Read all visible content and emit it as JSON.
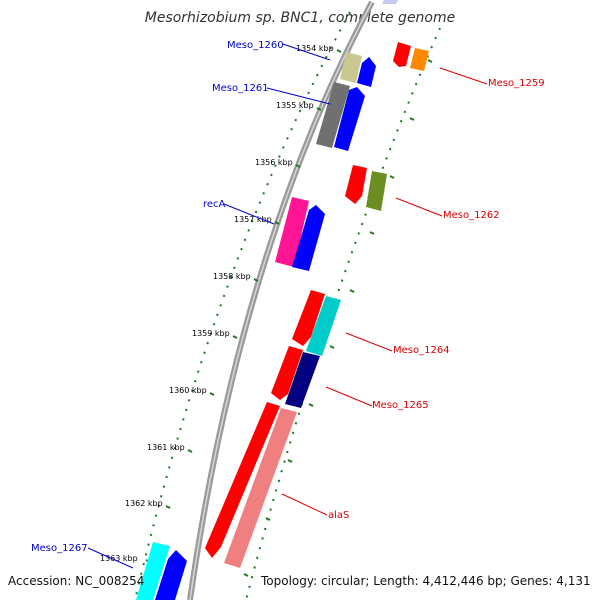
{
  "title": "Mesorhizobium sp. BNC1, complete genome",
  "colors": {
    "backbone": "#8c8c8c",
    "ticks": "#1b7a1b",
    "label_blue": "#0000cc",
    "label_red": "#dd0000"
  },
  "ticks": [
    "1354 kbp",
    "1355 kbp",
    "1356 kbp",
    "1357 kbp",
    "1358 kbp",
    "1359 kbp",
    "1360 kbp",
    "1361 kbp",
    "1362 kbp",
    "1363 kbp"
  ],
  "labels": [
    {
      "id": "Meso_1260",
      "text": "Meso_1260",
      "color": "#0000cc"
    },
    {
      "id": "Meso_1261",
      "text": "Meso_1261",
      "color": "#0000cc"
    },
    {
      "id": "recA",
      "text": "recA",
      "color": "#0000cc"
    },
    {
      "id": "Meso_1267",
      "text": "Meso_1267",
      "color": "#0000cc"
    },
    {
      "id": "Meso_1259",
      "text": "Meso_1259",
      "color": "#dd0000"
    },
    {
      "id": "Meso_1262",
      "text": "Meso_1262",
      "color": "#dd0000"
    },
    {
      "id": "Meso_1264",
      "text": "Meso_1264",
      "color": "#dd0000"
    },
    {
      "id": "Meso_1265",
      "text": "Meso_1265",
      "color": "#dd0000"
    },
    {
      "id": "alaS",
      "text": "alaS",
      "color": "#dd0000"
    }
  ],
  "features": [
    {
      "name": "top-faded-feature",
      "color": "#c8c8f0"
    },
    {
      "name": "Meso_1259",
      "color": "#ff0000"
    },
    {
      "name": "Meso_1259-partner",
      "color": "#ff8800"
    },
    {
      "name": "Meso_1260",
      "color": "#c8c890"
    },
    {
      "name": "Meso_1260-partner",
      "color": "#0000ff"
    },
    {
      "name": "Meso_1261",
      "color": "#707070"
    },
    {
      "name": "Meso_1261-partner",
      "color": "#0000ff"
    },
    {
      "name": "Meso_1262",
      "color": "#ff0000"
    },
    {
      "name": "Meso_1262-partner",
      "color": "#6b8e23"
    },
    {
      "name": "recA",
      "color": "#ff1493"
    },
    {
      "name": "recA-partner",
      "color": "#0000ff"
    },
    {
      "name": "Meso_1264",
      "color": "#ff0000"
    },
    {
      "name": "Meso_1264-partner",
      "color": "#00cccc"
    },
    {
      "name": "Meso_1265",
      "color": "#ff0000"
    },
    {
      "name": "Meso_1265-partner",
      "color": "#000080"
    },
    {
      "name": "alaS-forward",
      "color": "#ff0000"
    },
    {
      "name": "alaS",
      "color": "#f08080"
    },
    {
      "name": "Meso_1267",
      "color": "#00ffff"
    },
    {
      "name": "Meso_1267-partner",
      "color": "#0000ff"
    }
  ],
  "footer": {
    "accession": "Accession: NC_008254",
    "summary": "Topology: circular; Length: 4,412,446 bp; Genes: 4,131"
  }
}
